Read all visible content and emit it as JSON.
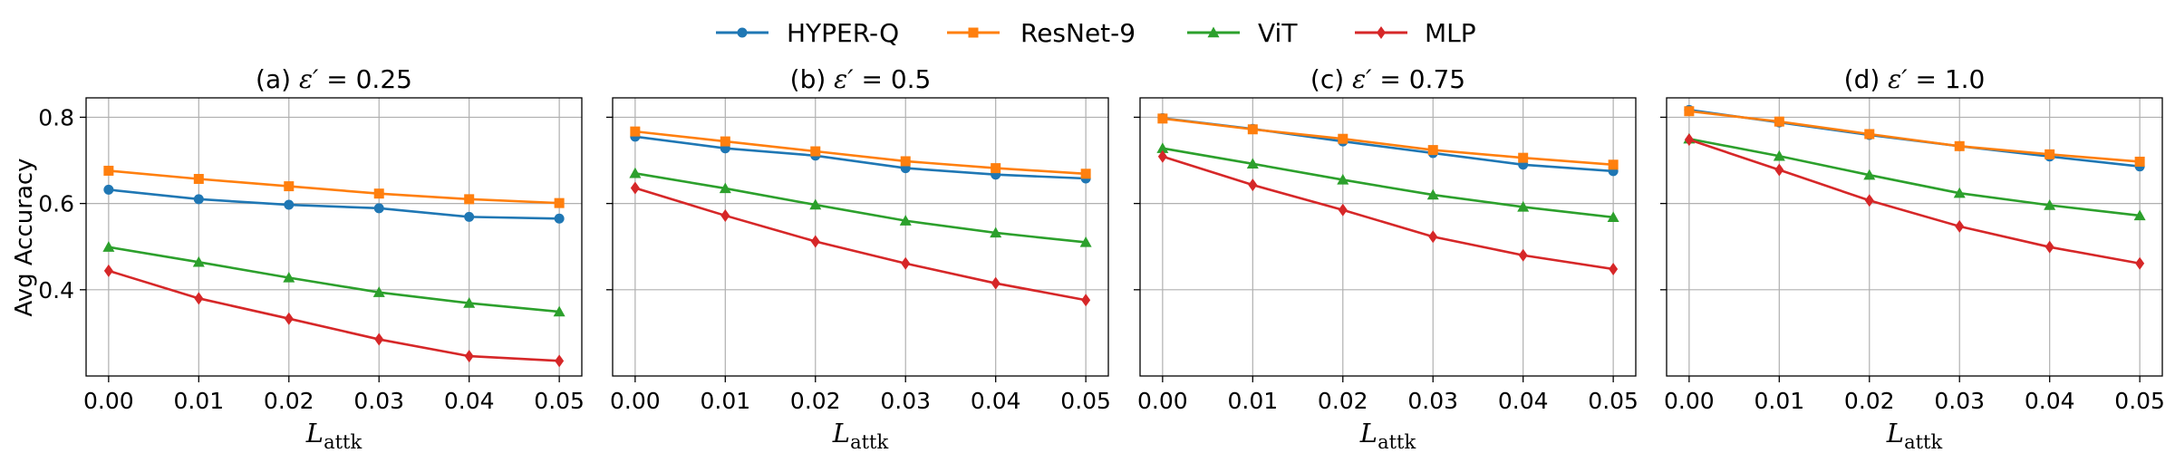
{
  "chart_data": {
    "type": "line",
    "legend": [
      {
        "name": "HYPER-Q",
        "color": "#1f77b4",
        "marker": "circle"
      },
      {
        "name": "ResNet-9",
        "color": "#ff7f0e",
        "marker": "square"
      },
      {
        "name": "ViT",
        "color": "#2ca02c",
        "marker": "triangle"
      },
      {
        "name": "MLP",
        "color": "#d62728",
        "marker": "diamond"
      }
    ],
    "legend_position": "top-center",
    "ylabel": "Avg Accuracy",
    "xlabel_main": "L",
    "xlabel_sub": "attk",
    "xlim": [
      -0.0025,
      0.0525
    ],
    "ylim": [
      0.2,
      0.845
    ],
    "x": [
      0.0,
      0.01,
      0.02,
      0.03,
      0.04,
      0.05
    ],
    "x_tick_labels": [
      "0.00",
      "0.01",
      "0.02",
      "0.03",
      "0.04",
      "0.05"
    ],
    "y_ticks": [
      0.4,
      0.6,
      0.8
    ],
    "y_tick_labels": [
      "0.4",
      "0.6",
      "0.8"
    ],
    "grid": true,
    "panels": [
      {
        "title_prefix": "(a) ",
        "title_symbol": "ε′",
        "title_value": " = 0.25",
        "series": [
          {
            "name": "HYPER-Q",
            "values": [
              0.632,
              0.61,
              0.597,
              0.589,
              0.569,
              0.565
            ]
          },
          {
            "name": "ResNet-9",
            "values": [
              0.676,
              0.657,
              0.64,
              0.623,
              0.61,
              0.601
            ]
          },
          {
            "name": "ViT",
            "values": [
              0.499,
              0.464,
              0.428,
              0.394,
              0.369,
              0.349
            ]
          },
          {
            "name": "MLP",
            "values": [
              0.444,
              0.38,
              0.333,
              0.285,
              0.246,
              0.235
            ]
          }
        ]
      },
      {
        "title_prefix": "(b) ",
        "title_symbol": "ε′",
        "title_value": " = 0.5",
        "series": [
          {
            "name": "HYPER-Q",
            "values": [
              0.755,
              0.728,
              0.711,
              0.682,
              0.667,
              0.658
            ]
          },
          {
            "name": "ResNet-9",
            "values": [
              0.767,
              0.744,
              0.721,
              0.698,
              0.682,
              0.669
            ]
          },
          {
            "name": "ViT",
            "values": [
              0.67,
              0.635,
              0.597,
              0.56,
              0.532,
              0.51
            ]
          },
          {
            "name": "MLP",
            "values": [
              0.636,
              0.572,
              0.512,
              0.461,
              0.415,
              0.376
            ]
          }
        ]
      },
      {
        "title_prefix": "(c) ",
        "title_symbol": "ε′",
        "title_value": " = 0.75",
        "series": [
          {
            "name": "HYPER-Q",
            "values": [
              0.798,
              0.773,
              0.744,
              0.717,
              0.69,
              0.675
            ]
          },
          {
            "name": "ResNet-9",
            "values": [
              0.797,
              0.772,
              0.75,
              0.724,
              0.706,
              0.69
            ]
          },
          {
            "name": "ViT",
            "values": [
              0.728,
              0.692,
              0.655,
              0.62,
              0.592,
              0.568
            ]
          },
          {
            "name": "MLP",
            "values": [
              0.709,
              0.643,
              0.585,
              0.523,
              0.48,
              0.448
            ]
          }
        ]
      },
      {
        "title_prefix": "(d) ",
        "title_symbol": "ε′",
        "title_value": " = 1.0",
        "series": [
          {
            "name": "HYPER-Q",
            "values": [
              0.817,
              0.788,
              0.759,
              0.733,
              0.709,
              0.686
            ]
          },
          {
            "name": "ResNet-9",
            "values": [
              0.814,
              0.79,
              0.761,
              0.733,
              0.714,
              0.697
            ]
          },
          {
            "name": "ViT",
            "values": [
              0.75,
              0.71,
              0.666,
              0.624,
              0.596,
              0.572
            ]
          },
          {
            "name": "MLP",
            "values": [
              0.748,
              0.678,
              0.607,
              0.547,
              0.499,
              0.461
            ]
          }
        ]
      }
    ]
  }
}
